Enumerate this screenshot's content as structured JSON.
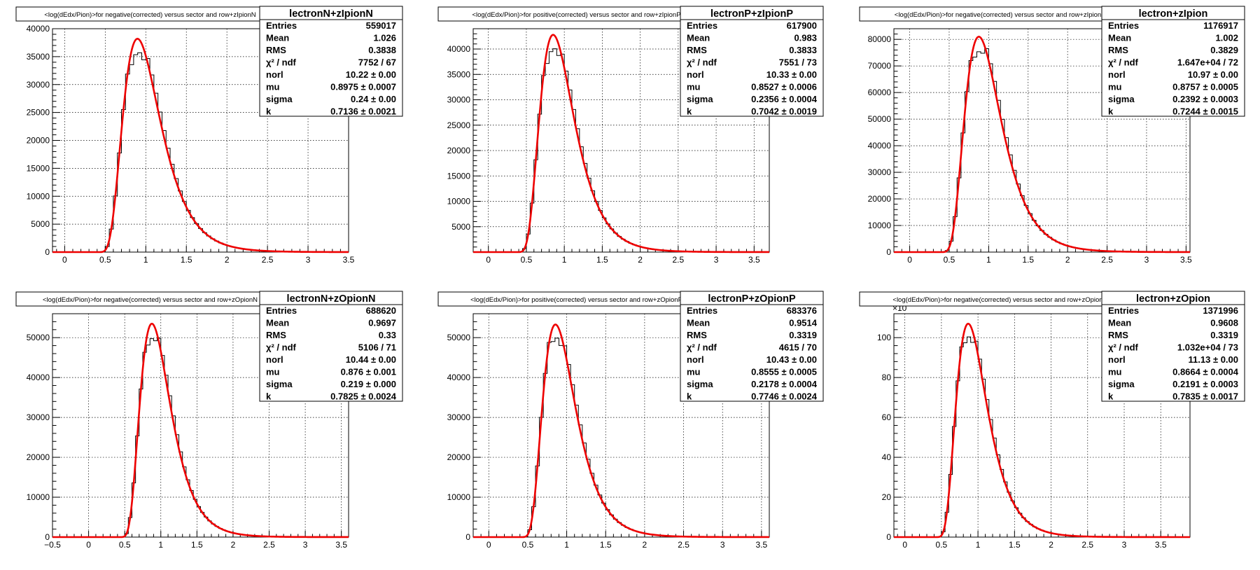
{
  "chart_data": [
    {
      "type": "histogram",
      "title": "<log(dEdx/Pion)>for negative(corrected) versus sector and row+zIpionN",
      "stats_name": "lectronN+zIpionN",
      "stats": [
        [
          "Entries",
          "559017"
        ],
        [
          "Mean",
          "1.026"
        ],
        [
          "RMS",
          "0.3838"
        ],
        [
          "χ² / ndf",
          "7752 / 67"
        ],
        [
          "norl",
          "10.22 ± 0.00"
        ],
        [
          "mu",
          "0.8975 ± 0.0007"
        ],
        [
          "sigma",
          "0.24 ± 0.00"
        ],
        [
          "k",
          "0.7136 ± 0.0021"
        ]
      ],
      "xlim": [
        -0.15,
        3.5
      ],
      "ylim": [
        0,
        40000
      ],
      "xticks": [
        "0",
        "0.5",
        "1",
        "1.5",
        "2",
        "2.5",
        "3",
        "3.5"
      ],
      "xtick_values": [
        0,
        0.5,
        1,
        1.5,
        2,
        2.5,
        3,
        3.5
      ],
      "yticks": [
        "0",
        "5000",
        "10000",
        "15000",
        "20000",
        "25000",
        "30000",
        "35000",
        "40000"
      ],
      "ytick_values": [
        0,
        5000,
        10000,
        15000,
        20000,
        25000,
        30000,
        35000,
        40000
      ],
      "y_exponent": "",
      "peak": 38200,
      "mu": 0.8975,
      "sigma": 0.24
    },
    {
      "type": "histogram",
      "title": "<log(dEdx/Pion)>for positive(corrected) versus sector and row+zIpionP",
      "stats_name": "lectronP+zIpionP",
      "stats": [
        [
          "Entries",
          "617900"
        ],
        [
          "Mean",
          "0.983"
        ],
        [
          "RMS",
          "0.3833"
        ],
        [
          "χ² / ndf",
          "7551 / 73"
        ],
        [
          "norl",
          "10.33 ± 0.00"
        ],
        [
          "mu",
          "0.8527 ± 0.0006"
        ],
        [
          "sigma",
          "0.2356 ± 0.0004"
        ],
        [
          "k",
          "0.7042 ± 0.0019"
        ]
      ],
      "xlim": [
        -0.2,
        3.7
      ],
      "ylim": [
        0,
        44000
      ],
      "xticks": [
        "0",
        "0.5",
        "1",
        "1.5",
        "2",
        "2.5",
        "3",
        "3.5"
      ],
      "xtick_values": [
        0,
        0.5,
        1,
        1.5,
        2,
        2.5,
        3,
        3.5
      ],
      "yticks": [
        "5000",
        "10000",
        "15000",
        "20000",
        "25000",
        "30000",
        "35000",
        "40000"
      ],
      "ytick_values": [
        5000,
        10000,
        15000,
        20000,
        25000,
        30000,
        35000,
        40000
      ],
      "y_exponent": "",
      "peak": 42800,
      "mu": 0.8527,
      "sigma": 0.2356
    },
    {
      "type": "histogram",
      "title": "<log(dEdx/Pion)>for negative(corrected) versus sector and row+zIpion",
      "stats_name": "lectron+zIpion",
      "stats": [
        [
          "Entries",
          "1176917"
        ],
        [
          "Mean",
          "1.002"
        ],
        [
          "RMS",
          "0.3829"
        ],
        [
          "χ² / ndf",
          "1.647e+04 / 72"
        ],
        [
          "norl",
          "10.97 ± 0.00"
        ],
        [
          "mu",
          "0.8757 ± 0.0005"
        ],
        [
          "sigma",
          "0.2392 ± 0.0003"
        ],
        [
          "k",
          "0.7244 ± 0.0015"
        ]
      ],
      "xlim": [
        -0.2,
        3.55
      ],
      "ylim": [
        0,
        84000
      ],
      "xticks": [
        "0",
        "0.5",
        "1",
        "1.5",
        "2",
        "2.5",
        "3",
        "3.5"
      ],
      "xtick_values": [
        0,
        0.5,
        1,
        1.5,
        2,
        2.5,
        3,
        3.5
      ],
      "yticks": [
        "0",
        "10000",
        "20000",
        "30000",
        "40000",
        "50000",
        "60000",
        "70000",
        "80000"
      ],
      "ytick_values": [
        0,
        10000,
        20000,
        30000,
        40000,
        50000,
        60000,
        70000,
        80000
      ],
      "y_exponent": "",
      "peak": 81000,
      "mu": 0.8757,
      "sigma": 0.2392
    },
    {
      "type": "histogram",
      "title": "<log(dEdx/Pion)>for negative(corrected) versus sector and row+zOpionN",
      "stats_name": "lectronN+zOpionN",
      "stats": [
        [
          "Entries",
          "688620"
        ],
        [
          "Mean",
          "0.9697"
        ],
        [
          "RMS",
          "0.33"
        ],
        [
          "χ² / ndf",
          "5106 / 71"
        ],
        [
          "norl",
          "10.44 ± 0.00"
        ],
        [
          "mu",
          "0.876 ± 0.001"
        ],
        [
          "sigma",
          "0.219 ± 0.000"
        ],
        [
          "k",
          "0.7825 ± 0.0024"
        ]
      ],
      "xlim": [
        -0.5,
        3.6
      ],
      "ylim": [
        0,
        56000
      ],
      "xticks": [
        "−0.5",
        "0",
        "0.5",
        "1",
        "1.5",
        "2",
        "2.5",
        "3",
        "3.5"
      ],
      "xtick_values": [
        -0.5,
        0,
        0.5,
        1,
        1.5,
        2,
        2.5,
        3,
        3.5
      ],
      "yticks": [
        "0",
        "10000",
        "20000",
        "30000",
        "40000",
        "50000"
      ],
      "ytick_values": [
        0,
        10000,
        20000,
        30000,
        40000,
        50000
      ],
      "y_exponent": "",
      "peak": 53500,
      "mu": 0.876,
      "sigma": 0.219
    },
    {
      "type": "histogram",
      "title": "<log(dEdx/Pion)>for positive(corrected) versus sector and row+zOpionP",
      "stats_name": "lectronP+zOpionP",
      "stats": [
        [
          "Entries",
          "683376"
        ],
        [
          "Mean",
          "0.9514"
        ],
        [
          "RMS",
          "0.3319"
        ],
        [
          "χ² / ndf",
          "4615 / 70"
        ],
        [
          "norl",
          "10.43 ± 0.00"
        ],
        [
          "mu",
          "0.8555 ± 0.0005"
        ],
        [
          "sigma",
          "0.2178 ± 0.0004"
        ],
        [
          "k",
          "0.7746 ± 0.0024"
        ]
      ],
      "xlim": [
        -0.2,
        3.6
      ],
      "ylim": [
        0,
        56000
      ],
      "xticks": [
        "0",
        "0.5",
        "1",
        "1.5",
        "2",
        "2.5",
        "3",
        "3.5"
      ],
      "xtick_values": [
        0,
        0.5,
        1,
        1.5,
        2,
        2.5,
        3,
        3.5
      ],
      "yticks": [
        "0",
        "10000",
        "20000",
        "30000",
        "40000",
        "50000"
      ],
      "ytick_values": [
        0,
        10000,
        20000,
        30000,
        40000,
        50000
      ],
      "y_exponent": "",
      "peak": 53300,
      "mu": 0.8555,
      "sigma": 0.2178
    },
    {
      "type": "histogram",
      "title": "<log(dEdx/Pion)>for negative(corrected) versus sector and row+zOpion",
      "stats_name": "lectron+zOpion",
      "stats": [
        [
          "Entries",
          "1371996"
        ],
        [
          "Mean",
          "0.9608"
        ],
        [
          "RMS",
          "0.3319"
        ],
        [
          "χ² / ndf",
          "1.032e+04 / 73"
        ],
        [
          "norl",
          "11.13 ± 0.00"
        ],
        [
          "mu",
          "0.8664 ± 0.0004"
        ],
        [
          "sigma",
          "0.2191 ± 0.0003"
        ],
        [
          "k",
          "0.7835 ± 0.0017"
        ]
      ],
      "xlim": [
        -0.15,
        3.9
      ],
      "ylim": [
        0,
        112
      ],
      "xticks": [
        "0",
        "0.5",
        "1",
        "1.5",
        "2",
        "2.5",
        "3",
        "3.5"
      ],
      "xtick_values": [
        0,
        0.5,
        1,
        1.5,
        2,
        2.5,
        3,
        3.5
      ],
      "yticks": [
        "0",
        "20",
        "40",
        "60",
        "80",
        "100"
      ],
      "ytick_values": [
        0,
        20,
        40,
        60,
        80,
        100
      ],
      "y_exponent": "×10",
      "peak": 107,
      "mu": 0.8664,
      "sigma": 0.2191
    }
  ],
  "colors": {
    "fit": "#ee0000",
    "histogram": "#000000",
    "grid": "#000000"
  }
}
